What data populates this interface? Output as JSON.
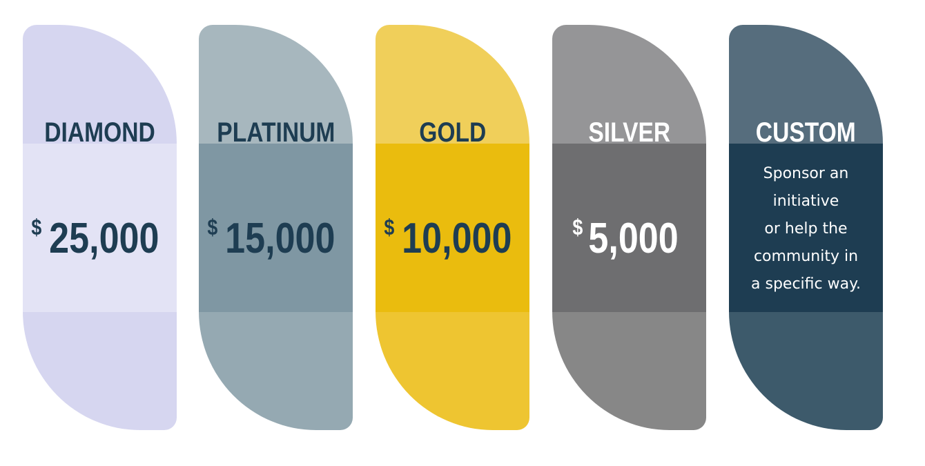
{
  "tiers": [
    {
      "name": "DIAMOND",
      "currency": "$",
      "price": "25,000"
    },
    {
      "name": "PLATINUM",
      "currency": "$",
      "price": "15,000"
    },
    {
      "name": "GOLD",
      "currency": "$",
      "price": "10,000"
    },
    {
      "name": "SILVER",
      "currency": "$",
      "price": "5,000"
    },
    {
      "name": "CUSTOM",
      "description": [
        "Sponsor an",
        "initiative",
        "or help the",
        "community in",
        "a specific way."
      ]
    }
  ]
}
